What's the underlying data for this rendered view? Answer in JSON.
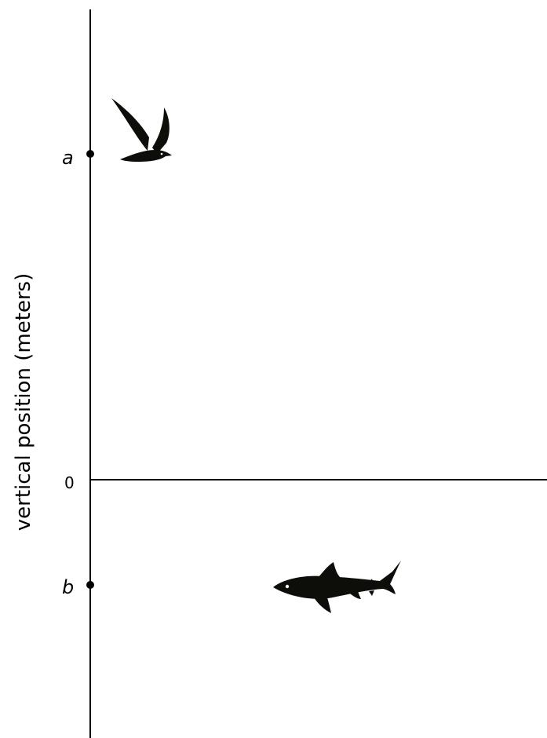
{
  "axis": {
    "title": "vertical position (meters)"
  },
  "markers": {
    "a_label": "a",
    "zero_label": "0",
    "b_label": "b"
  },
  "icons": {
    "top": "bird-icon",
    "bottom": "shark-icon"
  },
  "colors": {
    "ink": "#000000",
    "silhouette": "#0d0d0a"
  }
}
